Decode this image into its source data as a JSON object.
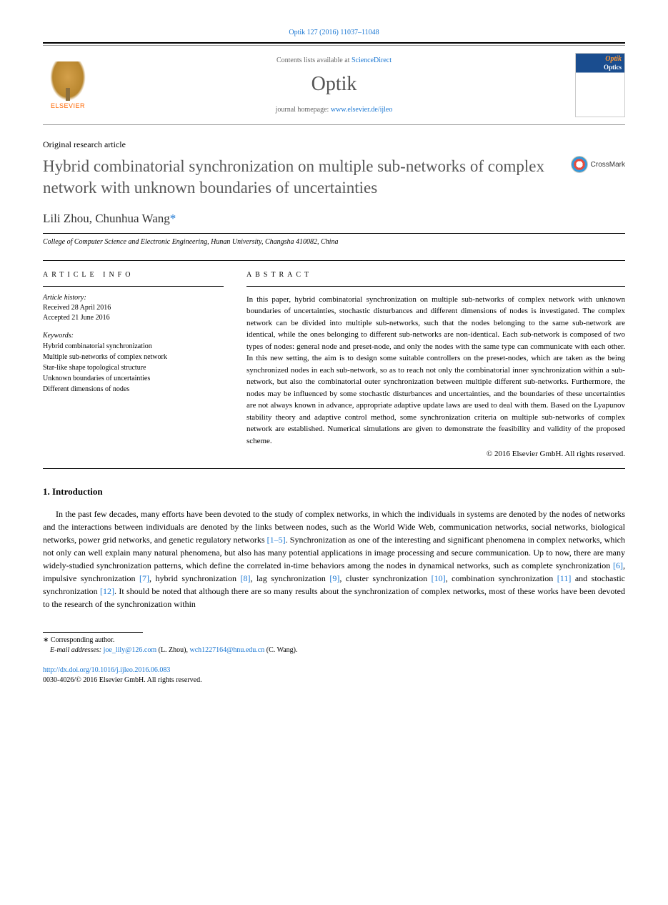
{
  "citation": "Optik 127 (2016) 11037–11048",
  "contents_prefix": "Contents lists available at ",
  "contents_link": "ScienceDirect",
  "journal_name": "Optik",
  "homepage_prefix": "journal homepage: ",
  "homepage_link": "www.elsevier.de/ijleo",
  "elsevier": "ELSEVIER",
  "article_type": "Original research article",
  "title": "Hybrid combinatorial synchronization on multiple sub-networks of complex network with unknown boundaries of uncertainties",
  "crossmark": "CrossMark",
  "authors": {
    "a1": "Lili Zhou",
    "sep": ", ",
    "a2": "Chunhua Wang",
    "star": "*"
  },
  "affiliation": "College of Computer Science and Electronic Engineering, Hunan University, Changsha 410082, China",
  "info_label": "article info",
  "abstract_label": "abstract",
  "history": {
    "heading": "Article history:",
    "received": "Received 28 April 2016",
    "accepted": "Accepted 21 June 2016"
  },
  "keywords": {
    "heading": "Keywords:",
    "k1": "Hybrid combinatorial synchronization",
    "k2": "Multiple sub-networks of complex network",
    "k3": "Star-like shape topological structure",
    "k4": "Unknown boundaries of uncertainties",
    "k5": "Different dimensions of nodes"
  },
  "abstract": "In this paper, hybrid combinatorial synchronization on multiple sub-networks of complex network with unknown boundaries of uncertainties, stochastic disturbances and different dimensions of nodes is investigated. The complex network can be divided into multiple sub-networks, such that the nodes belonging to the same sub-network are identical, while the ones belonging to different sub-networks are non-identical. Each sub-network is composed of two types of nodes: general node and preset-node, and only the nodes with the same type can communicate with each other. In this new setting, the aim is to design some suitable controllers on the preset-nodes, which are taken as the being synchronized nodes in each sub-network, so as to reach not only the combinatorial inner synchronization within a sub-network, but also the combinatorial outer synchronization between multiple different sub-networks. Furthermore, the nodes may be influenced by some stochastic disturbances and uncertainties, and the boundaries of these uncertainties are not always known in advance, appropriate adaptive update laws are used to deal with them. Based on the Lyapunov stability theory and adaptive control method, some synchronization criteria on multiple sub-networks of complex network are established. Numerical simulations are given to demonstrate the feasibility and validity of the proposed scheme.",
  "copyright": "© 2016 Elsevier GmbH. All rights reserved.",
  "intro_heading": "1.  Introduction",
  "intro_body": {
    "p1a": "In the past few decades, many efforts have been devoted to the study of complex networks, in which the individuals in systems are denoted by the nodes of networks and the interactions between individuals are denoted by the links between nodes, such as the World Wide Web, communication networks, social networks, biological networks, power grid networks, and genetic regulatory networks ",
    "r1": "[1–5]",
    "p1b": ". Synchronization as one of the interesting and significant phenomena in complex networks, which not only can well explain many natural phenomena, but also has many potential applications in image processing and secure communication. Up to now, there are many widely-studied synchronization patterns, which define the correlated in-time behaviors among the nodes in dynamical networks, such as complete synchronization ",
    "r6": "[6]",
    "p1c": ", impulsive synchronization ",
    "r7": "[7]",
    "p1d": ", hybrid synchronization ",
    "r8": "[8]",
    "p1e": ", lag synchronization ",
    "r9": "[9]",
    "p1f": ", cluster synchronization ",
    "r10": "[10]",
    "p1g": ", combination synchronization ",
    "r11": "[11]",
    "p1h": " and stochastic synchronization ",
    "r12": "[12]",
    "p1i": ". It should be noted that although there are so many results about the synchronization of complex networks, most of these works have been devoted to the research of the synchronization within"
  },
  "footnote": {
    "corr": "∗  Corresponding author.",
    "email_label": "E-mail addresses: ",
    "email1": "joe_lily@126.com",
    "email1_name": " (L. Zhou), ",
    "email2": "wch1227164@hnu.edu.cn",
    "email2_name": " (C. Wang)."
  },
  "doi": {
    "link": "http://dx.doi.org/10.1016/j.ijleo.2016.06.083",
    "issn": "0030-4026/© 2016 Elsevier GmbH. All rights reserved."
  }
}
